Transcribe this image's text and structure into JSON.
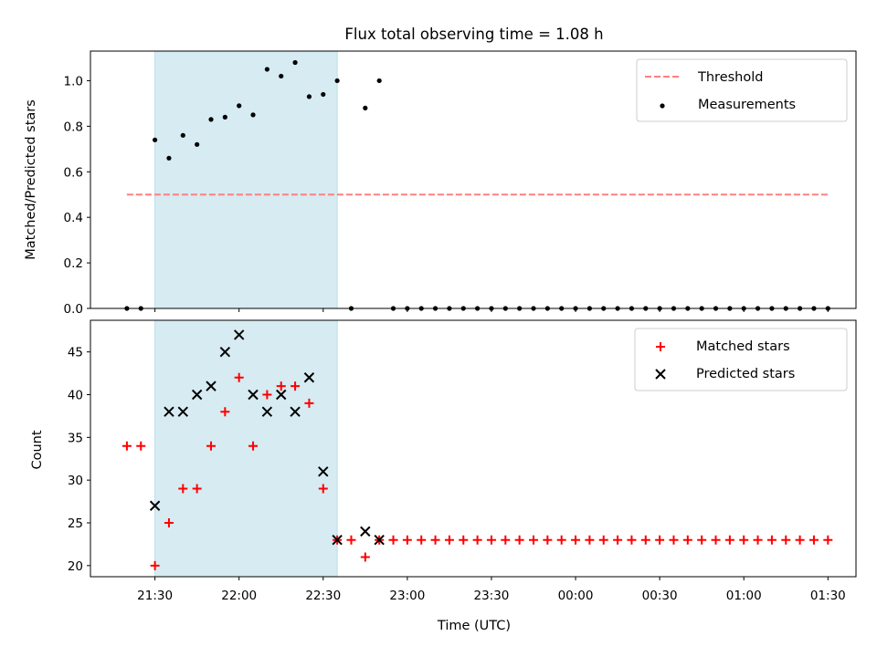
{
  "figure": {
    "title": "Flux total observing time = 1.08 h"
  },
  "chart_data": [
    {
      "type": "scatter",
      "panel": "top",
      "ylabel": "Matched/Predicted stars",
      "xlabel": "",
      "ylim": [
        0,
        1.13
      ],
      "yticks": [
        0.0,
        0.2,
        0.4,
        0.6,
        0.8,
        1.0
      ],
      "ytick_labels": [
        "0.0",
        "0.2",
        "0.4",
        "0.6",
        "0.8",
        "1.0"
      ],
      "xlim": [
        "21:07",
        "01:40"
      ],
      "highlight_span": [
        "21:30",
        "22:35"
      ],
      "legend": {
        "placement": "upper right",
        "entries": [
          "Threshold",
          "Measurements"
        ]
      },
      "series": [
        {
          "name": "Threshold",
          "style": "dashed-line",
          "color": "#ff7f7f",
          "x": [
            "21:20",
            "01:30"
          ],
          "y": [
            0.5,
            0.5
          ]
        },
        {
          "name": "Measurements",
          "style": "dot",
          "color": "#000000",
          "x": [
            "21:20",
            "21:25",
            "21:30",
            "21:35",
            "21:40",
            "21:45",
            "21:50",
            "21:55",
            "22:00",
            "22:05",
            "22:10",
            "22:15",
            "22:20",
            "22:25",
            "22:30",
            "22:35",
            "22:40",
            "22:45",
            "22:50",
            "22:55",
            "23:00",
            "23:05",
            "23:10",
            "23:15",
            "23:20",
            "23:25",
            "23:30",
            "23:35",
            "23:40",
            "23:45",
            "23:50",
            "23:55",
            "00:00",
            "00:05",
            "00:10",
            "00:15",
            "00:20",
            "00:25",
            "00:30",
            "00:35",
            "00:40",
            "00:45",
            "00:50",
            "00:55",
            "01:00",
            "01:05",
            "01:10",
            "01:15",
            "01:20",
            "01:25",
            "01:30"
          ],
          "y": [
            0,
            0,
            0.74,
            0.66,
            0.76,
            0.72,
            0.83,
            0.84,
            0.89,
            0.85,
            1.05,
            1.02,
            1.08,
            0.93,
            0.94,
            1.0,
            0,
            0.88,
            1.0,
            0,
            0,
            0,
            0,
            0,
            0,
            0,
            0,
            0,
            0,
            0,
            0,
            0,
            0,
            0,
            0,
            0,
            0,
            0,
            0,
            0,
            0,
            0,
            0,
            0,
            0,
            0,
            0,
            0,
            0,
            0,
            0
          ]
        }
      ]
    },
    {
      "type": "scatter",
      "panel": "bottom",
      "ylabel": "Count",
      "xlabel": "Time (UTC)",
      "ylim": [
        18.7,
        48.7
      ],
      "yticks": [
        20,
        25,
        30,
        35,
        40,
        45
      ],
      "ytick_labels": [
        "20",
        "25",
        "30",
        "35",
        "40",
        "45"
      ],
      "xlim": [
        "21:07",
        "01:40"
      ],
      "xticks": [
        "21:30",
        "22:00",
        "22:30",
        "23:00",
        "23:30",
        "00:00",
        "00:30",
        "01:00",
        "01:30"
      ],
      "xtick_labels": [
        "21:30",
        "22:00",
        "22:30",
        "23:00",
        "23:30",
        "00:00",
        "00:30",
        "01:00",
        "01:30"
      ],
      "highlight_span": [
        "21:30",
        "22:35"
      ],
      "legend": {
        "placement": "upper right",
        "entries": [
          "Matched stars",
          "Predicted stars"
        ]
      },
      "series": [
        {
          "name": "Matched stars",
          "style": "plus",
          "color": "#ff0000",
          "x": [
            "21:20",
            "21:25",
            "21:30",
            "21:35",
            "21:40",
            "21:45",
            "21:50",
            "21:55",
            "22:00",
            "22:05",
            "22:10",
            "22:15",
            "22:20",
            "22:25",
            "22:30",
            "22:35",
            "22:40",
            "22:45",
            "22:50",
            "22:55",
            "23:00",
            "23:05",
            "23:10",
            "23:15",
            "23:20",
            "23:25",
            "23:30",
            "23:35",
            "23:40",
            "23:45",
            "23:50",
            "23:55",
            "00:00",
            "00:05",
            "00:10",
            "00:15",
            "00:20",
            "00:25",
            "00:30",
            "00:35",
            "00:40",
            "00:45",
            "00:50",
            "00:55",
            "01:00",
            "01:05",
            "01:10",
            "01:15",
            "01:20",
            "01:25",
            "01:30"
          ],
          "y": [
            34,
            34,
            20,
            25,
            29,
            29,
            34,
            38,
            42,
            34,
            40,
            41,
            41,
            39,
            29,
            23,
            23,
            21,
            23,
            23,
            23,
            23,
            23,
            23,
            23,
            23,
            23,
            23,
            23,
            23,
            23,
            23,
            23,
            23,
            23,
            23,
            23,
            23,
            23,
            23,
            23,
            23,
            23,
            23,
            23,
            23,
            23,
            23,
            23,
            23,
            23
          ]
        },
        {
          "name": "Predicted stars",
          "style": "x",
          "color": "#000000",
          "x": [
            "21:30",
            "21:35",
            "21:40",
            "21:45",
            "21:50",
            "21:55",
            "22:00",
            "22:05",
            "22:10",
            "22:15",
            "22:20",
            "22:25",
            "22:30",
            "22:35",
            "22:45",
            "22:50"
          ],
          "y": [
            27,
            38,
            38,
            40,
            41,
            45,
            47,
            40,
            38,
            40,
            38,
            42,
            31,
            23,
            24,
            23
          ]
        }
      ]
    }
  ]
}
